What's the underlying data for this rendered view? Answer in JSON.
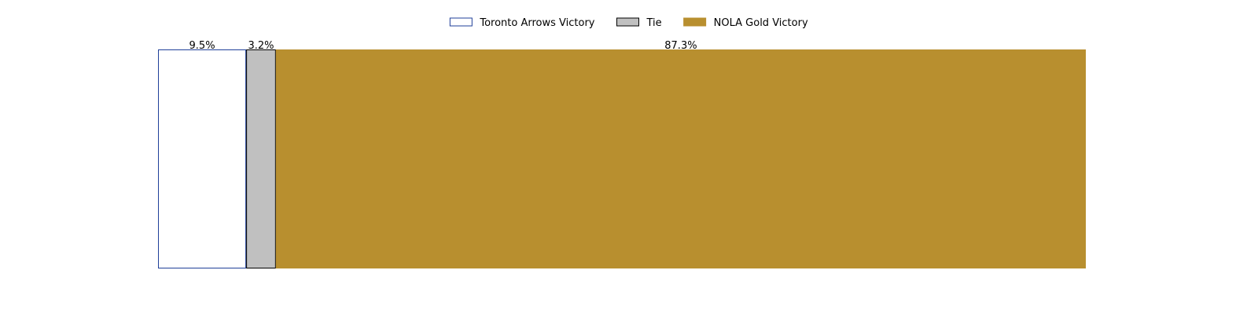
{
  "chart_data": {
    "type": "bar",
    "orientation": "horizontal-stacked",
    "categories": [
      ""
    ],
    "series": [
      {
        "name": "Toronto Arrows Victory",
        "values": [
          9.5
        ],
        "label": "9.5%",
        "color": "#ffffff",
        "edge_color": "#1f3f99"
      },
      {
        "name": "Tie",
        "values": [
          3.2
        ],
        "label": "3.2%",
        "color": "#c0c0c0",
        "edge_color": "#000000"
      },
      {
        "name": "NOLA Gold Victory",
        "values": [
          87.3
        ],
        "label": "87.3%",
        "color": "#b88f2f",
        "edge_color": "#b88f2f"
      }
    ],
    "xlim": [
      0,
      100
    ],
    "grid": false,
    "axes_visible": false,
    "legend_placement": "top-center"
  }
}
